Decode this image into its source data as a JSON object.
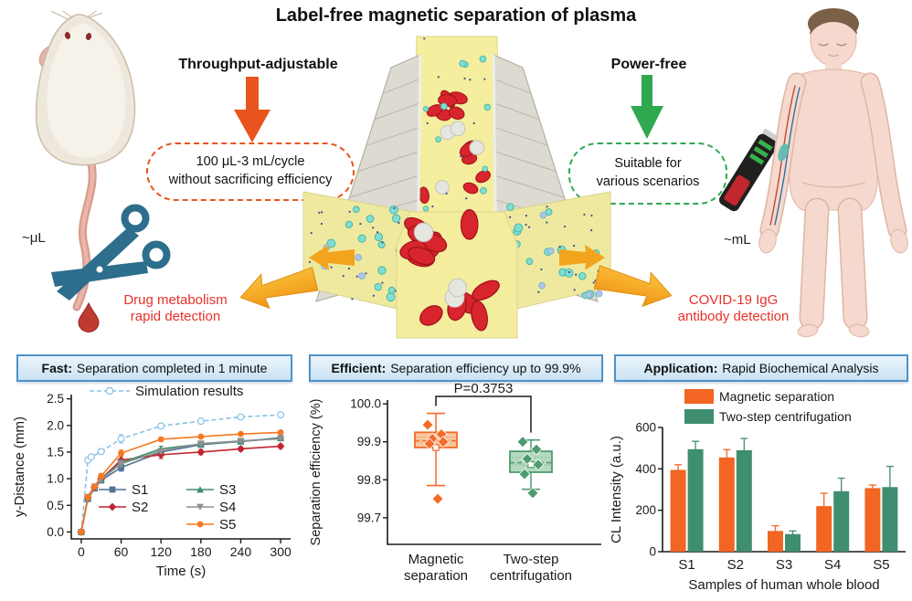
{
  "title": "Label-free magnetic separation of plasma",
  "top": {
    "mouse_scale_label": "~μL",
    "human_scale_label": "~mL",
    "throughput": {
      "heading": "Throughput-adjustable",
      "box_line1": "100 μL-3 mL/cycle",
      "box_line2": "without sacrificing efficiency"
    },
    "powerfree": {
      "heading": "Power-free",
      "box_line1": "Suitable for",
      "box_line2": "various scenarios"
    },
    "left_callout": {
      "line1": "Drug metabolism",
      "line2": "rapid detection"
    },
    "right_callout": {
      "line1": "COVID-19 IgG",
      "line2": "antibody detection"
    }
  },
  "colors": {
    "accent_orange": "#e8541d",
    "accent_green": "#2fa84f",
    "callout_red": "#e8312a",
    "flow_arrow_yellow": "#f6a41f",
    "header_border_blue": "#4f93c8",
    "header_bg_blue": "#d9ebf7",
    "magnetic_series_orange": "#f26522",
    "centrifugation_series_green": "#3f8e70"
  },
  "panels": [
    {
      "keyword": "Fast:",
      "rest": " Separation completed in 1 minute"
    },
    {
      "keyword": "Efficient:",
      "rest": " Separation efficiency up to 99.9%"
    },
    {
      "keyword": "Application:",
      "rest": " Rapid Biochemical Analysis"
    }
  ],
  "chart_data": [
    {
      "type": "line",
      "xlabel": "Time (s)",
      "ylabel": "y-Distance (mm)",
      "xlim": [
        -15,
        315
      ],
      "ylim": [
        -0.13,
        2.58
      ],
      "xticks": [
        0,
        60,
        120,
        180,
        240,
        300
      ],
      "yticks": [
        0.0,
        0.5,
        1.0,
        1.5,
        2.0,
        2.5
      ],
      "ytick_labels": [
        "0.0",
        "0.5",
        "1.0",
        "1.5",
        "2.0",
        "2.5"
      ],
      "legend_top": "Simulation results",
      "inner_legend": [
        "S1",
        "S2",
        "S3",
        "S4",
        "S5"
      ],
      "series": [
        {
          "name": "Simulation results",
          "color": "#85c2e4",
          "dashed": true,
          "marker": "circle-open",
          "x": [
            0,
            10,
            15,
            30,
            60,
            120,
            180,
            240,
            300
          ],
          "y": [
            0,
            1.35,
            1.41,
            1.51,
            1.75,
            1.99,
            2.08,
            2.16,
            2.2
          ],
          "yerr": [
            0,
            0.05,
            0.04,
            0.05,
            0.08,
            0.04,
            0.03,
            0.03,
            0.04
          ]
        },
        {
          "name": "S1",
          "color": "#4f7296",
          "dashed": false,
          "marker": "square",
          "x": [
            0,
            10,
            20,
            30,
            60,
            120,
            180,
            240,
            300
          ],
          "y": [
            0,
            0.62,
            0.82,
            0.97,
            1.21,
            1.5,
            1.64,
            1.7,
            1.76
          ],
          "yerr": [
            0,
            0.04,
            0.04,
            0.05,
            0.07,
            0.05,
            0.04,
            0.03,
            0.03
          ]
        },
        {
          "name": "S2",
          "color": "#c2252f",
          "dashed": false,
          "marker": "diamond",
          "x": [
            0,
            10,
            20,
            30,
            60,
            120,
            180,
            240,
            300
          ],
          "y": [
            0,
            0.65,
            0.84,
            1.0,
            1.35,
            1.45,
            1.5,
            1.56,
            1.61
          ],
          "yerr": [
            0,
            0.04,
            0.03,
            0.04,
            0.08,
            0.07,
            0.05,
            0.04,
            0.04
          ]
        },
        {
          "name": "S3",
          "color": "#3f8c6d",
          "dashed": false,
          "marker": "triangle-up",
          "x": [
            0,
            10,
            20,
            30,
            60,
            120,
            180,
            240,
            300
          ],
          "y": [
            0,
            0.66,
            0.86,
            1.0,
            1.3,
            1.56,
            1.65,
            1.7,
            1.77
          ],
          "yerr": [
            0,
            0.04,
            0.04,
            0.04,
            0.06,
            0.05,
            0.04,
            0.03,
            0.03
          ]
        },
        {
          "name": "S4",
          "color": "#8f9193",
          "dashed": false,
          "marker": "triangle-down",
          "x": [
            0,
            10,
            20,
            30,
            60,
            120,
            180,
            240,
            300
          ],
          "y": [
            0,
            0.64,
            0.85,
            0.99,
            1.28,
            1.52,
            1.66,
            1.71,
            1.75
          ],
          "yerr": [
            0,
            0.04,
            0.04,
            0.05,
            0.06,
            0.05,
            0.04,
            0.03,
            0.03
          ]
        },
        {
          "name": "S5",
          "color": "#f67821",
          "dashed": false,
          "marker": "circle",
          "x": [
            0,
            10,
            20,
            30,
            60,
            120,
            180,
            240,
            300
          ],
          "y": [
            0,
            0.66,
            0.85,
            1.05,
            1.48,
            1.74,
            1.79,
            1.84,
            1.87
          ],
          "yerr": [
            0,
            0.04,
            0.04,
            0.05,
            0.06,
            0.04,
            0.03,
            0.03,
            0.03
          ]
        }
      ]
    },
    {
      "type": "box",
      "ylabel": "Separation efficiency (%)",
      "ylim": [
        99.63,
        100.01
      ],
      "yticks": [
        99.7,
        99.8,
        99.9,
        100.0
      ],
      "ytick_labels": [
        "99.7",
        "99.8",
        "99.9",
        "100.0"
      ],
      "annotation": "P=0.3753",
      "groups": [
        {
          "label": [
            "Magnetic",
            "separation"
          ],
          "color": "#f26b28",
          "fill": "#f9c79d",
          "q1": 99.885,
          "median": 99.903,
          "q3": 99.925,
          "mean": 99.885,
          "whisker_low": 99.785,
          "whisker_high": 99.975,
          "points": [
            99.945,
            99.92,
            99.908,
            99.9,
            99.895,
            99.75
          ]
        },
        {
          "label": [
            "Two-step",
            "centrifugation"
          ],
          "color": "#4d9c70",
          "fill": "#b5d9bd",
          "q1": 99.82,
          "median": 99.845,
          "q3": 99.875,
          "mean": 99.84,
          "whisker_low": 99.775,
          "whisker_high": 99.905,
          "points": [
            99.9,
            99.88,
            99.855,
            99.84,
            99.815,
            99.765
          ]
        }
      ]
    },
    {
      "type": "bar",
      "xlabel": "Samples of human whole blood",
      "ylabel": "CL Intensity (a.u.)",
      "ylim": [
        0,
        600
      ],
      "yticks": [
        0,
        200,
        400,
        600
      ],
      "categories": [
        "S1",
        "S2",
        "S3",
        "S4",
        "S5"
      ],
      "series": [
        {
          "name": "Magnetic separation",
          "color": "#f26522",
          "values": [
            395,
            455,
            100,
            220,
            307
          ],
          "errors": [
            25,
            38,
            25,
            62,
            15
          ]
        },
        {
          "name": "Two-step centrifugation",
          "color": "#3f8e70",
          "values": [
            495,
            490,
            85,
            292,
            312
          ],
          "errors": [
            38,
            57,
            15,
            63,
            100
          ]
        }
      ]
    }
  ]
}
